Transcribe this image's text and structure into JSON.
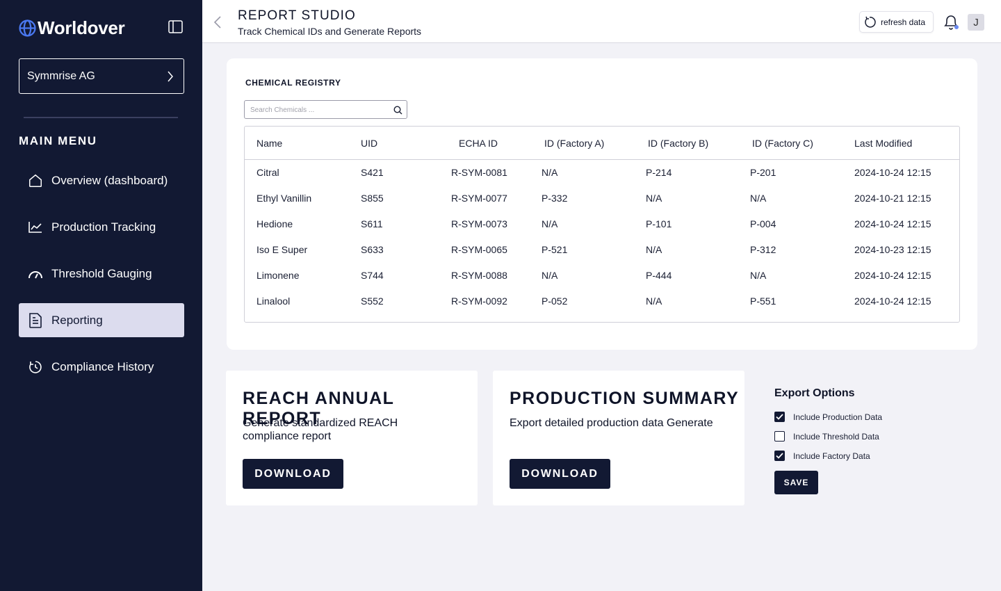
{
  "brand": {
    "name": "Worldover",
    "accent": "#4a78f0"
  },
  "sidebar": {
    "company": "Symmrise AG",
    "menu_heading": "MAIN MENU",
    "items": [
      {
        "label": "Overview (dashboard)",
        "icon": "home-icon"
      },
      {
        "label": "Production Tracking",
        "icon": "chart-line-icon"
      },
      {
        "label": "Threshold Gauging",
        "icon": "gauge-icon"
      },
      {
        "label": "Reporting",
        "icon": "report-icon",
        "active": true
      },
      {
        "label": "Compliance History",
        "icon": "history-icon"
      }
    ]
  },
  "header": {
    "title": "REPORT STUDIO",
    "subtitle": "Track Chemical IDs and Generate Reports",
    "refresh_label": "refresh data",
    "avatar_initial": "J"
  },
  "registry": {
    "title": "CHEMICAL REGISTRY",
    "search_placeholder": "Search Chemicals ...",
    "columns": [
      "Name",
      "UID",
      "ECHA ID",
      "ID (Factory A)",
      "ID (Factory B)",
      "ID (Factory C)",
      "Last Modified"
    ],
    "rows": [
      [
        "Citral",
        "S421",
        "R-SYM-0081",
        "N/A",
        "P-214",
        "P-201",
        "2024-10-24 12:15"
      ],
      [
        "Ethyl Vanillin",
        "S855",
        "R-SYM-0077",
        "P-332",
        "N/A",
        "N/A",
        "2024-10-21 12:15"
      ],
      [
        "Hedione",
        "S611",
        "R-SYM-0073",
        "N/A",
        "P-101",
        "P-004",
        "2024-10-24 12:15"
      ],
      [
        "Iso E Super",
        "S633",
        "R-SYM-0065",
        "P-521",
        "N/A",
        "P-312",
        "2024-10-23 12:15"
      ],
      [
        "Limonene",
        "S744",
        "R-SYM-0088",
        "N/A",
        "P-444",
        "N/A",
        "2024-10-24 12:15"
      ],
      [
        "Linalool",
        "S552",
        "R-SYM-0092",
        "P-052",
        "N/A",
        "P-551",
        "2024-10-24 12:15"
      ]
    ]
  },
  "reports": [
    {
      "title": "REACH ANNUAL REPORT",
      "description": "Generate standardized REACH compliance report",
      "button": "DOWNLOAD"
    },
    {
      "title": "PRODUCTION SUMMARY",
      "description": "Export detailed production data Generate",
      "button": "DOWNLOAD"
    }
  ],
  "export_options": {
    "title": "Export Options",
    "options": [
      {
        "label": "Include Production Data",
        "checked": true
      },
      {
        "label": "Include Threshold Data",
        "checked": false
      },
      {
        "label": "Include Factory Data",
        "checked": true
      }
    ],
    "save_label": "SAVE"
  }
}
